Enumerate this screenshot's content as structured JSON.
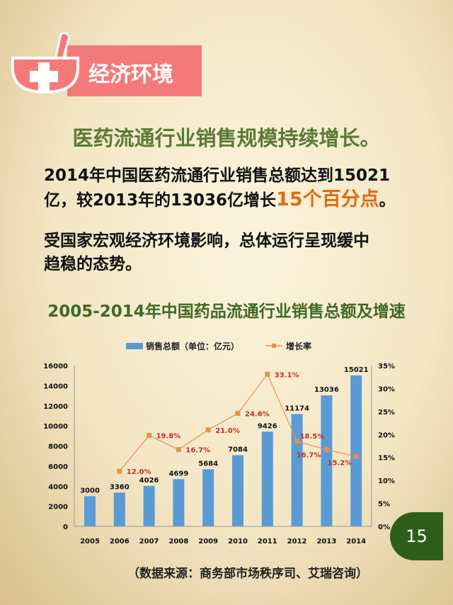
{
  "header": {
    "section_label": "经济环境",
    "icon": "mortar-pestle-cross-icon"
  },
  "subtitle": "医药流通行业销售规模持续增长。",
  "paragraph1": {
    "line1": "2014年中国医药流通行业销售总额达到15021",
    "line2_pre": "亿，较2013年的13036亿增长",
    "line2_highlight": "15个百分点",
    "line2_post": "。"
  },
  "paragraph2": {
    "line1": "受国家宏观经济环境影响，总体运行呈现缓中",
    "line2": "趋稳的态势。"
  },
  "page_number": "15",
  "source": "（数据来源：商务部市场秩序司、艾瑞咨询）",
  "chart_data": {
    "type": "bar+line",
    "title": "2005-2014年中国药品流通行业销售总额及增速",
    "categories": [
      "2005",
      "2006",
      "2007",
      "2008",
      "2009",
      "2010",
      "2011",
      "2012",
      "2013",
      "2014"
    ],
    "series": [
      {
        "name": "销售总额（单位：亿元）",
        "type": "bar",
        "axis": "left",
        "color": "#5b9bd5",
        "values": [
          3000,
          3360,
          4026,
          4699,
          5684,
          7084,
          9426,
          11174,
          13036,
          15021
        ]
      },
      {
        "name": "增长率",
        "type": "line",
        "axis": "right",
        "color": "#e8904e",
        "values": [
          null,
          12.0,
          19.8,
          16.7,
          21.0,
          24.6,
          33.1,
          18.5,
          16.7,
          15.2
        ],
        "labels": [
          "",
          "12.0%",
          "19.8%",
          "16.7%",
          "21.0%",
          "24.6%",
          "33.1%",
          "18.5%",
          "16.7%",
          "15.2%"
        ]
      }
    ],
    "ylim_left": [
      0,
      16000
    ],
    "yticks_left": [
      "0",
      "2000",
      "4000",
      "6000",
      "8000",
      "10000",
      "12000",
      "14000",
      "16000"
    ],
    "ylim_right": [
      0,
      35
    ],
    "yticks_right": [
      "0%",
      "5%",
      "10%",
      "15%",
      "20%",
      "25%",
      "30%",
      "35%"
    ],
    "legend_position": "top",
    "grid": false
  }
}
